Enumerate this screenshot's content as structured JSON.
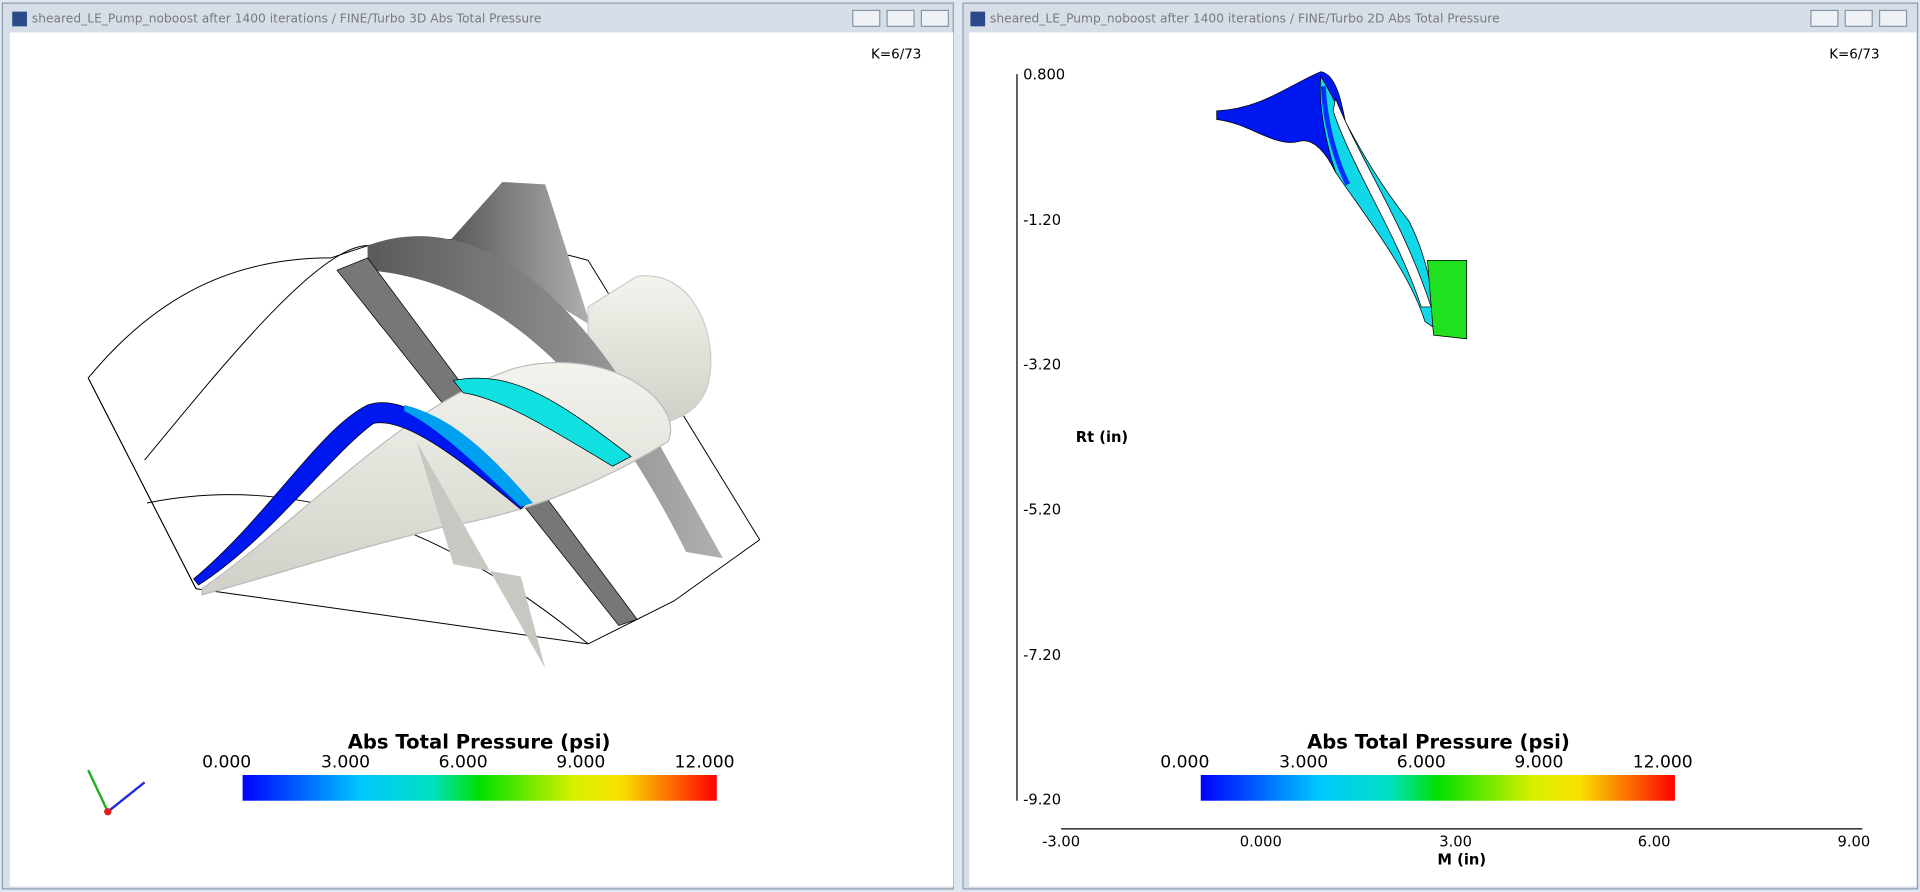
{
  "windows": [
    {
      "title": "sheared_LE_Pump_noboost after 1400 iterations / FINE/Turbo 3D Abs Total Pressure",
      "k_label": "K=6/73",
      "colorbar": {
        "title": "Abs Total Pressure (psi)",
        "ticks": [
          "0.000",
          "3.000",
          "6.000",
          "9.000",
          "12.000"
        ]
      }
    },
    {
      "title": "sheared_LE_Pump_noboost after 1400 iterations / FINE/Turbo 2D Abs Total Pressure",
      "k_label": "K=6/73",
      "colorbar": {
        "title": "Abs Total Pressure (psi)",
        "ticks": [
          "0.000",
          "3.000",
          "6.000",
          "9.000",
          "12.000"
        ]
      },
      "y_axis": {
        "label": "Rt (in)",
        "ticks": [
          "0.800",
          "-1.20",
          "-3.20",
          "-5.20",
          "-7.20",
          "-9.20"
        ]
      },
      "x_axis": {
        "label": "M (in)",
        "ticks": [
          "-3.00",
          "0.000",
          "3.00",
          "6.00",
          "9.00"
        ]
      }
    }
  ]
}
